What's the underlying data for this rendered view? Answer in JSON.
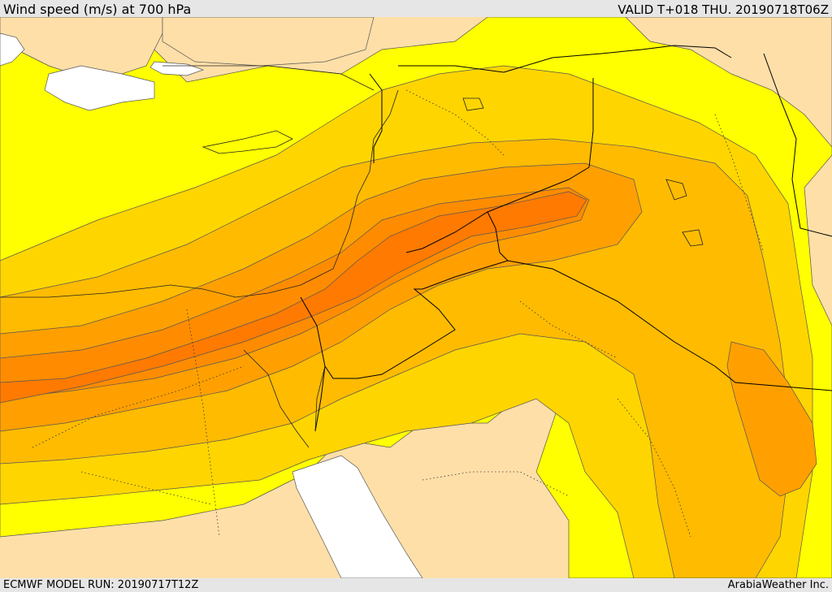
{
  "header": {
    "title": "Wind speed (m/s) at 700 hPa",
    "valid": "VALID T+018 THU. 20190718T06Z"
  },
  "footer": {
    "model_run": "ECMWF MODEL RUN: 20190717T12Z",
    "credit": "ArabiaWeather Inc."
  },
  "palette": {
    "light_wind": "#ffdfa8",
    "yellow": "#ffff00",
    "yellow_orange": "#ffe600",
    "gold": "#ffd500",
    "orange_light": "#ffbb00",
    "orange": "#ffa000",
    "orange_dark": "#ff8c00",
    "core": "#ff7a00",
    "sea_white": "#ffffff",
    "border": "#000000"
  }
}
